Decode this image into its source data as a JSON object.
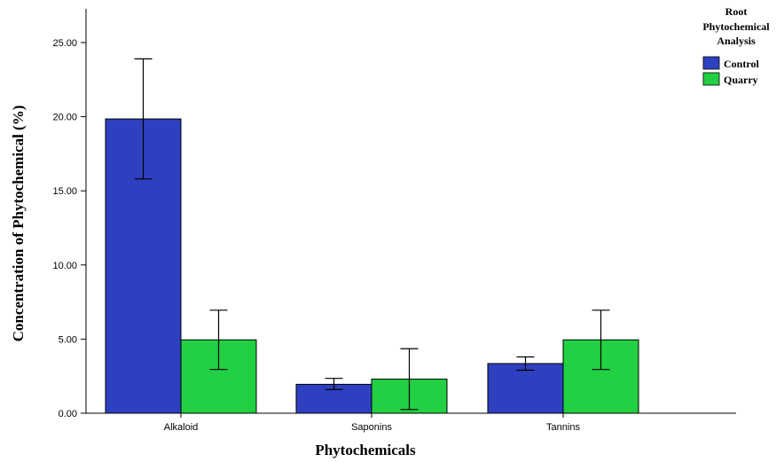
{
  "chart_data": {
    "type": "bar",
    "categories": [
      "Alkaloid",
      "Saponins",
      "Tannins"
    ],
    "series": [
      {
        "name": "Control",
        "color": "#2e40c0",
        "values": [
          19.85,
          1.95,
          3.35
        ],
        "error_low": [
          15.8,
          1.6,
          2.9
        ],
        "error_high": [
          23.9,
          2.35,
          3.8
        ]
      },
      {
        "name": "Quarry",
        "color": "#21d043",
        "values": [
          4.95,
          2.3,
          4.95
        ],
        "error_low": [
          2.95,
          0.25,
          2.95
        ],
        "error_high": [
          6.95,
          4.35,
          6.95
        ]
      }
    ],
    "xlabel": "Phytochemicals",
    "ylabel": "Concentration of Phytochemical (%)",
    "ylim": [
      0,
      27.5
    ],
    "yticks": [
      "0.00",
      "5.00",
      "10.00",
      "15.00",
      "20.00",
      "25.00"
    ],
    "ytick_values": [
      0,
      5,
      10,
      15,
      20,
      25
    ],
    "legend": {
      "title_lines": [
        "Root",
        "Phytochemical",
        "Analysis"
      ],
      "placement": "top-right"
    },
    "grid": false
  }
}
